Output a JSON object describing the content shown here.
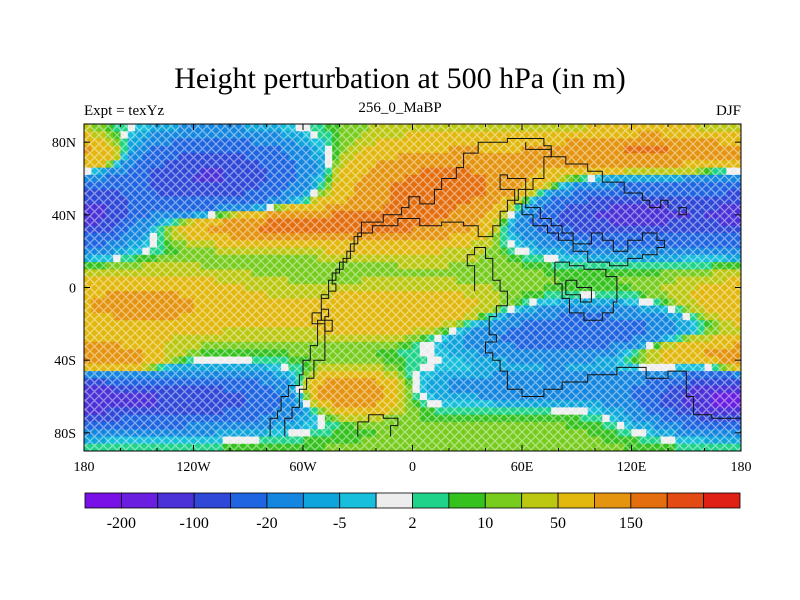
{
  "title": "Height perturbation at 500 hPa (in m)",
  "left_subtitle": "Expt = texYz",
  "center_subtitle": "256_0_MaBP",
  "right_subtitle": "DJF",
  "x_ticks": [
    {
      "lon": -180,
      "label": "180"
    },
    {
      "lon": -120,
      "label": "120W"
    },
    {
      "lon": -60,
      "label": "60W"
    },
    {
      "lon": 0,
      "label": "0"
    },
    {
      "lon": 60,
      "label": "60E"
    },
    {
      "lon": 120,
      "label": "120E"
    },
    {
      "lon": 180,
      "label": "180"
    }
  ],
  "y_ticks": [
    {
      "lat": 80,
      "label": "80N"
    },
    {
      "lat": 40,
      "label": "40N"
    },
    {
      "lat": 0,
      "label": "0"
    },
    {
      "lat": -40,
      "label": "40S"
    },
    {
      "lat": -80,
      "label": "80S"
    }
  ],
  "colorbar": {
    "colors": [
      "#7a10e8",
      "#6a1fe0",
      "#4a32d8",
      "#3048d8",
      "#1f64e0",
      "#1586e0",
      "#0ea4dc",
      "#18bfdc",
      "#ededed",
      "#1fd48a",
      "#36c21e",
      "#78cc1e",
      "#bcc810",
      "#e2b80e",
      "#e4940e",
      "#e46e0e",
      "#e44a14",
      "#e02014"
    ],
    "labels": [
      {
        "after": 1,
        "text": "-200"
      },
      {
        "after": 3,
        "text": "-100"
      },
      {
        "after": 5,
        "text": "-20"
      },
      {
        "after": 7,
        "text": "-5"
      },
      {
        "after": 9,
        "text": "2"
      },
      {
        "after": 11,
        "text": "10"
      },
      {
        "after": 13,
        "text": "50"
      },
      {
        "after": 15,
        "text": "150"
      }
    ]
  },
  "map": {
    "lon_range": [
      -180,
      180
    ],
    "lat_range": [
      -90,
      90
    ],
    "field_blobs": [
      {
        "lon": -110,
        "lat": 62,
        "rlon": 50,
        "rlat": 20,
        "value": -160
      },
      {
        "lon": -175,
        "lat": 40,
        "rlon": 20,
        "rlat": 16,
        "value": -90
      },
      {
        "lon": 120,
        "lat": 40,
        "rlon": 75,
        "rlat": 16,
        "value": -180
      },
      {
        "lon": 90,
        "lat": -25,
        "rlon": 65,
        "rlat": 14,
        "value": -100
      },
      {
        "lon": 70,
        "lat": -55,
        "rlon": 80,
        "rlat": 10,
        "value": -40
      },
      {
        "lon": -130,
        "lat": -62,
        "rlon": 65,
        "rlat": 14,
        "value": -150
      },
      {
        "lon": 165,
        "lat": -62,
        "rlon": 35,
        "rlat": 14,
        "value": -150
      },
      {
        "lon": -60,
        "lat": 34,
        "rlon": 65,
        "rlat": 9,
        "value": 130
      },
      {
        "lon": 20,
        "lat": 52,
        "rlon": 55,
        "rlat": 22,
        "value": 140
      },
      {
        "lon": -150,
        "lat": -10,
        "rlon": 55,
        "rlat": 15,
        "value": 60
      },
      {
        "lon": 0,
        "lat": -15,
        "rlon": 60,
        "rlat": 12,
        "value": 50
      },
      {
        "lon": -165,
        "lat": -40,
        "rlon": 25,
        "rlat": 8,
        "value": 90
      },
      {
        "lon": -35,
        "lat": -58,
        "rlon": 25,
        "rlat": 10,
        "value": 120
      },
      {
        "lon": 130,
        "lat": 75,
        "rlon": 55,
        "rlat": 10,
        "value": 100
      },
      {
        "lon": 150,
        "lat": -35,
        "rlon": 40,
        "rlat": 10,
        "value": 60
      },
      {
        "lon": -170,
        "lat": 70,
        "rlon": 15,
        "rlat": 10,
        "value": 40
      }
    ],
    "coastlines": [
      [
        [
          -70,
          -82
        ],
        [
          -70,
          -72
        ],
        [
          -66,
          -72
        ],
        [
          -66,
          -66
        ],
        [
          -62,
          -66
        ],
        [
          -62,
          -56
        ],
        [
          -58,
          -56
        ],
        [
          -58,
          -50
        ],
        [
          -54,
          -50
        ],
        [
          -54,
          -40
        ],
        [
          -48,
          -40
        ],
        [
          -48,
          -16
        ],
        [
          -46,
          -16
        ],
        [
          -46,
          -12
        ],
        [
          -50,
          -12
        ],
        [
          -50,
          -6
        ],
        [
          -46,
          -6
        ],
        [
          -46,
          -2
        ],
        [
          -42,
          -2
        ],
        [
          -42,
          2
        ],
        [
          -44,
          2
        ],
        [
          -44,
          8
        ],
        [
          -40,
          8
        ],
        [
          -40,
          14
        ],
        [
          -36,
          14
        ],
        [
          -36,
          20
        ],
        [
          -32,
          20
        ],
        [
          -32,
          28
        ],
        [
          -28,
          28
        ],
        [
          -28,
          36
        ],
        [
          -16,
          36
        ],
        [
          -16,
          40
        ],
        [
          -6,
          40
        ],
        [
          -6,
          44
        ],
        [
          -2,
          44
        ],
        [
          -2,
          50
        ],
        [
          4,
          50
        ],
        [
          4,
          46
        ],
        [
          12,
          46
        ],
        [
          12,
          54
        ],
        [
          16,
          54
        ],
        [
          16,
          60
        ],
        [
          24,
          60
        ],
        [
          24,
          66
        ],
        [
          28,
          66
        ],
        [
          28,
          74
        ],
        [
          36,
          74
        ],
        [
          36,
          80
        ],
        [
          52,
          80
        ],
        [
          52,
          82
        ],
        [
          72,
          82
        ],
        [
          72,
          78
        ],
        [
          76,
          78
        ],
        [
          76,
          72
        ],
        [
          72,
          72
        ],
        [
          72,
          60
        ],
        [
          66,
          60
        ],
        [
          66,
          54
        ],
        [
          58,
          54
        ],
        [
          58,
          48
        ],
        [
          52,
          48
        ],
        [
          52,
          42
        ],
        [
          48,
          42
        ],
        [
          48,
          34
        ],
        [
          44,
          34
        ],
        [
          44,
          28
        ],
        [
          36,
          28
        ],
        [
          36,
          34
        ],
        [
          28,
          34
        ],
        [
          28,
          36
        ],
        [
          16,
          36
        ],
        [
          16,
          34
        ],
        [
          4,
          34
        ],
        [
          4,
          38
        ],
        [
          -8,
          38
        ],
        [
          -8,
          34
        ],
        [
          -22,
          34
        ],
        [
          -22,
          30
        ],
        [
          -30,
          30
        ],
        [
          -30,
          24
        ],
        [
          -34,
          24
        ],
        [
          -34,
          16
        ],
        [
          -38,
          16
        ],
        [
          -38,
          10
        ],
        [
          -42,
          10
        ],
        [
          -42,
          4
        ],
        [
          -46,
          4
        ],
        [
          -46,
          -4
        ],
        [
          -50,
          -4
        ],
        [
          -50,
          -18
        ],
        [
          -52,
          -18
        ],
        [
          -52,
          -32
        ],
        [
          -56,
          -32
        ],
        [
          -56,
          -40
        ],
        [
          -60,
          -40
        ],
        [
          -60,
          -48
        ],
        [
          -62,
          -48
        ],
        [
          -62,
          -54
        ],
        [
          -68,
          -54
        ],
        [
          -68,
          -60
        ],
        [
          -72,
          -60
        ],
        [
          -72,
          -68
        ],
        [
          -74,
          -68
        ],
        [
          -74,
          -72
        ],
        [
          -78,
          -72
        ],
        [
          -78,
          -82
        ]
      ],
      [
        [
          -55,
          -14
        ],
        [
          -50,
          -14
        ],
        [
          -50,
          -18
        ],
        [
          -44,
          -18
        ],
        [
          -44,
          -24
        ],
        [
          -48,
          -24
        ],
        [
          -48,
          -20
        ],
        [
          -55,
          -20
        ],
        [
          -55,
          -14
        ]
      ],
      [
        [
          -30,
          -82
        ],
        [
          -30,
          -74
        ],
        [
          -24,
          -74
        ],
        [
          -24,
          -70
        ],
        [
          -16,
          -70
        ],
        [
          -16,
          -72
        ],
        [
          -8,
          -72
        ],
        [
          -8,
          -76
        ],
        [
          -12,
          -76
        ],
        [
          -12,
          -82
        ]
      ],
      [
        [
          34,
          -2
        ],
        [
          34,
          12
        ],
        [
          30,
          12
        ],
        [
          30,
          18
        ],
        [
          34,
          18
        ],
        [
          34,
          22
        ],
        [
          40,
          22
        ],
        [
          40,
          16
        ],
        [
          44,
          16
        ],
        [
          44,
          4
        ],
        [
          48,
          4
        ],
        [
          48,
          -2
        ],
        [
          52,
          -2
        ],
        [
          52,
          -10
        ],
        [
          46,
          -10
        ],
        [
          46,
          -16
        ],
        [
          42,
          -16
        ],
        [
          42,
          -26
        ],
        [
          46,
          -26
        ],
        [
          46,
          -30
        ],
        [
          40,
          -30
        ],
        [
          40,
          -36
        ],
        [
          44,
          -36
        ],
        [
          44,
          -40
        ],
        [
          48,
          -40
        ],
        [
          48,
          -46
        ],
        [
          52,
          -46
        ],
        [
          52,
          -56
        ],
        [
          60,
          -56
        ],
        [
          60,
          -60
        ],
        [
          72,
          -60
        ],
        [
          72,
          -56
        ],
        [
          82,
          -56
        ],
        [
          82,
          -52
        ],
        [
          96,
          -52
        ],
        [
          96,
          -48
        ],
        [
          112,
          -48
        ],
        [
          112,
          -44
        ],
        [
          128,
          -44
        ],
        [
          128,
          -50
        ],
        [
          140,
          -50
        ],
        [
          140,
          -46
        ],
        [
          150,
          -46
        ],
        [
          150,
          -60
        ],
        [
          154,
          -60
        ],
        [
          154,
          -70
        ],
        [
          164,
          -70
        ],
        [
          164,
          -72
        ],
        [
          180,
          -72
        ]
      ],
      [
        [
          62,
          52
        ],
        [
          62,
          44
        ],
        [
          70,
          44
        ],
        [
          70,
          38
        ],
        [
          76,
          38
        ],
        [
          76,
          34
        ],
        [
          82,
          34
        ],
        [
          82,
          30
        ],
        [
          88,
          30
        ],
        [
          88,
          24
        ],
        [
          98,
          24
        ],
        [
          98,
          30
        ],
        [
          104,
          30
        ],
        [
          104,
          26
        ],
        [
          110,
          26
        ],
        [
          110,
          20
        ],
        [
          118,
          20
        ],
        [
          118,
          26
        ],
        [
          126,
          26
        ],
        [
          126,
          30
        ],
        [
          134,
          30
        ],
        [
          134,
          26
        ],
        [
          138,
          26
        ],
        [
          138,
          22
        ],
        [
          134,
          22
        ],
        [
          134,
          18
        ],
        [
          126,
          18
        ],
        [
          126,
          16
        ],
        [
          118,
          16
        ],
        [
          118,
          12
        ],
        [
          108,
          12
        ],
        [
          108,
          14
        ],
        [
          96,
          14
        ],
        [
          96,
          20
        ],
        [
          88,
          20
        ],
        [
          88,
          26
        ],
        [
          80,
          26
        ],
        [
          80,
          30
        ],
        [
          74,
          30
        ],
        [
          74,
          34
        ],
        [
          66,
          34
        ],
        [
          66,
          40
        ],
        [
          60,
          40
        ],
        [
          60,
          46
        ],
        [
          56,
          46
        ],
        [
          56,
          54
        ],
        [
          48,
          54
        ],
        [
          48,
          62
        ],
        [
          52,
          62
        ],
        [
          52,
          60
        ],
        [
          62,
          60
        ],
        [
          62,
          52
        ]
      ],
      [
        [
          62,
          80
        ],
        [
          62,
          76
        ],
        [
          76,
          76
        ],
        [
          76,
          72
        ],
        [
          84,
          72
        ],
        [
          84,
          68
        ],
        [
          96,
          68
        ],
        [
          96,
          64
        ],
        [
          104,
          64
        ],
        [
          104,
          58
        ],
        [
          116,
          58
        ],
        [
          116,
          52
        ],
        [
          126,
          52
        ],
        [
          126,
          48
        ],
        [
          130,
          48
        ],
        [
          130,
          44
        ],
        [
          136,
          44
        ],
        [
          136,
          48
        ],
        [
          140,
          48
        ],
        [
          140,
          44
        ]
      ],
      [
        [
          78,
          14
        ],
        [
          78,
          2
        ],
        [
          82,
          2
        ],
        [
          82,
          -6
        ],
        [
          86,
          -6
        ],
        [
          86,
          -14
        ],
        [
          94,
          -14
        ],
        [
          94,
          -18
        ],
        [
          104,
          -18
        ],
        [
          104,
          -14
        ],
        [
          110,
          -14
        ],
        [
          110,
          -8
        ],
        [
          112,
          -8
        ],
        [
          112,
          6
        ],
        [
          106,
          6
        ],
        [
          106,
          10
        ],
        [
          94,
          10
        ],
        [
          94,
          12
        ],
        [
          86,
          12
        ],
        [
          86,
          14
        ],
        [
          78,
          14
        ]
      ],
      [
        [
          84,
          4
        ],
        [
          90,
          4
        ],
        [
          90,
          0
        ],
        [
          98,
          0
        ],
        [
          98,
          -8
        ],
        [
          92,
          -8
        ],
        [
          92,
          -4
        ],
        [
          84,
          -4
        ],
        [
          84,
          4
        ]
      ],
      [
        [
          146,
          44
        ],
        [
          150,
          44
        ],
        [
          150,
          40
        ],
        [
          146,
          40
        ],
        [
          146,
          44
        ]
      ]
    ]
  }
}
